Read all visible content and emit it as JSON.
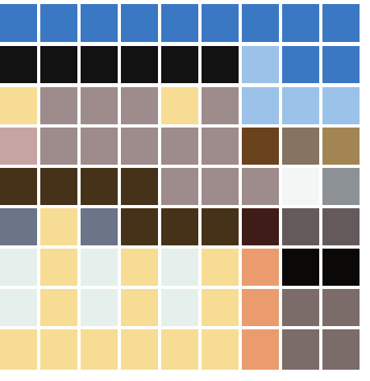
{
  "mosaic": {
    "rows": 9,
    "cols": 9,
    "cells": [
      [
        "#3b78c4",
        "#3b78c4",
        "#3b78c4",
        "#3b78c4",
        "#3b78c4",
        "#3b78c4",
        "#3b78c4",
        "#3b78c4",
        "#3b78c4"
      ],
      [
        "#121212",
        "#121212",
        "#121212",
        "#121212",
        "#121212",
        "#121212",
        "#9bc2e8",
        "#3b78c4",
        "#3b78c4"
      ],
      [
        "#f7dc93",
        "#9d8c8b",
        "#9d8c8b",
        "#9d8c8b",
        "#f7dc93",
        "#9d8c8b",
        "#9bc2e8",
        "#9bc2e8",
        "#9bc2e8"
      ],
      [
        "#c6a4a3",
        "#9d8c8b",
        "#9d8c8b",
        "#9d8c8b",
        "#9d8c8b",
        "#9d8c8b",
        "#6a421d",
        "#867462",
        "#a38553"
      ],
      [
        "#463218",
        "#463218",
        "#463218",
        "#463218",
        "#9d8c8b",
        "#9d8c8b",
        "#9d8c8b",
        "#f4f6f6",
        "#8c9195"
      ],
      [
        "#6c7487",
        "#f7dc93",
        "#6c7487",
        "#463218",
        "#463218",
        "#463218",
        "#3f1c18",
        "#655a5b",
        "#655a5b"
      ],
      [
        "#e5f0ed",
        "#f7dc93",
        "#e5f0ed",
        "#f7dc93",
        "#e5f0ed",
        "#f7dc93",
        "#eb9c6e",
        "#0b0808",
        "#0b0808"
      ],
      [
        "#e5f0ed",
        "#f7dc93",
        "#e5f0ed",
        "#f7dc93",
        "#e5f0ed",
        "#f7dc93",
        "#eb9c6e",
        "#7b6b69",
        "#7b6b69"
      ],
      [
        "#f7dc93",
        "#f7dc93",
        "#f7dc93",
        "#f7dc93",
        "#f7dc93",
        "#f7dc93",
        "#eb9c6e",
        "#7b6b69",
        "#7b6b69"
      ]
    ]
  }
}
